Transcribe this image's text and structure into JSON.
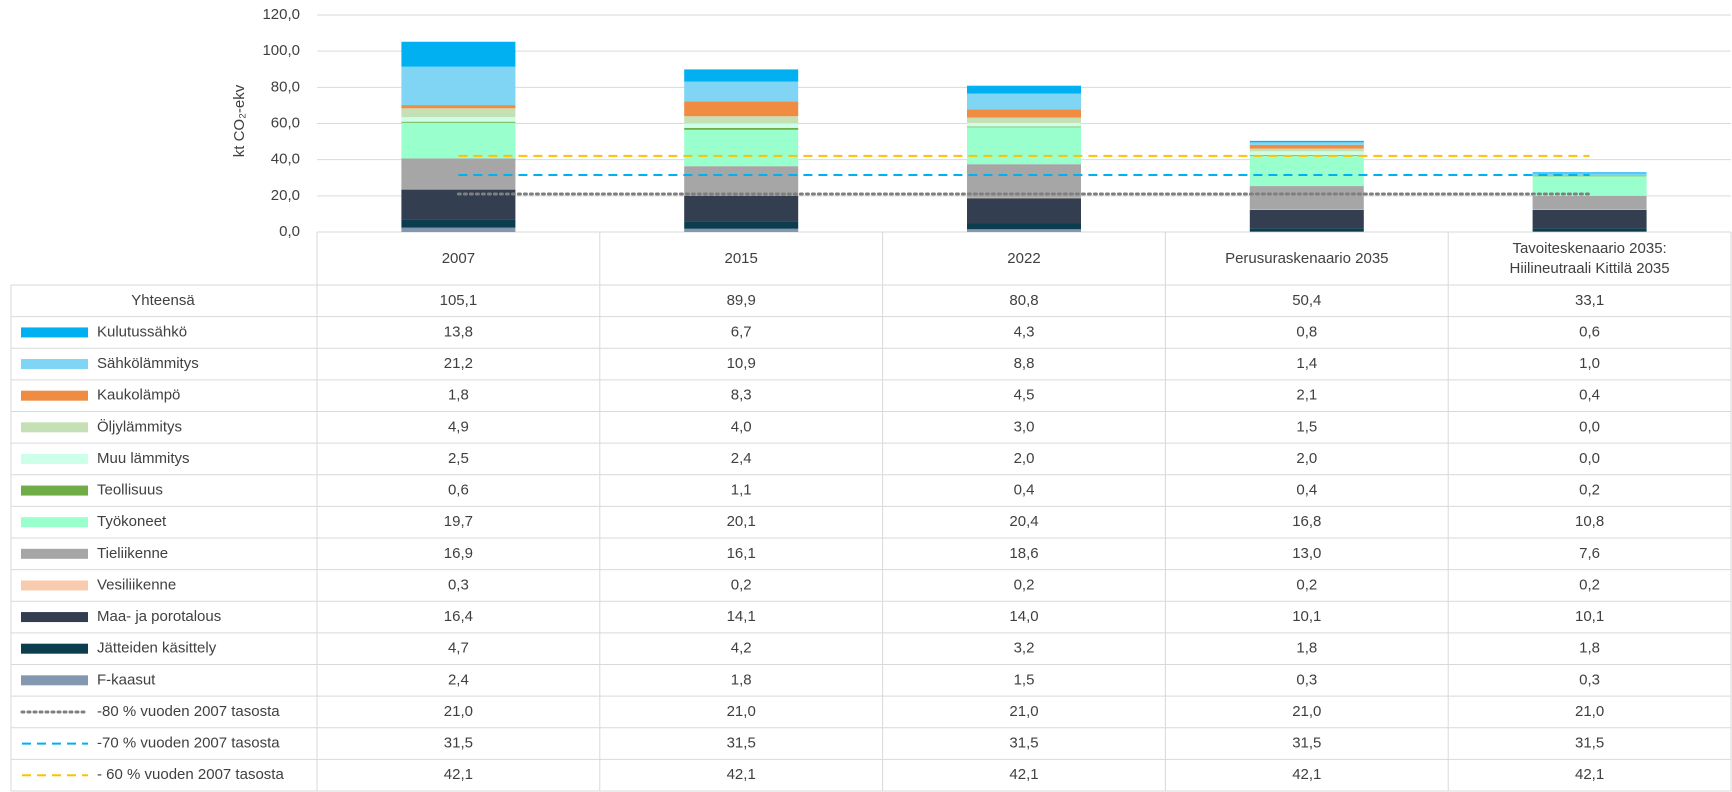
{
  "chart_data": {
    "type": "bar",
    "stacked": true,
    "y_label": "kt CO₂-ekv",
    "categories": [
      "2007",
      "2015",
      "2022",
      "Perusuraskenaario 2035",
      "Tavoiteskenaario 2035: Hiilineutraali Kittilä 2035"
    ],
    "ylim": [
      0,
      120
    ],
    "yticks": [
      {
        "value": 0,
        "label": "0,0"
      },
      {
        "value": 20,
        "label": "20,0"
      },
      {
        "value": 40,
        "label": "40,0"
      },
      {
        "value": 60,
        "label": "60,0"
      },
      {
        "value": 80,
        "label": "80,0"
      },
      {
        "value": 100,
        "label": "100,0"
      },
      {
        "value": 120,
        "label": "120,0"
      }
    ],
    "grid": true,
    "totals": {
      "name": "Yhteensä",
      "values": [
        105.1,
        89.9,
        80.8,
        50.4,
        33.1
      ],
      "value_labels": [
        "105,1",
        "89,9",
        "80,8",
        "50,4",
        "33,1"
      ]
    },
    "series": [
      {
        "name": "Kulutussähkö",
        "color": "#00b0f0",
        "values": [
          13.8,
          6.7,
          4.3,
          0.8,
          0.6
        ],
        "value_labels": [
          "13,8",
          "6,7",
          "4,3",
          "0,8",
          "0,6"
        ]
      },
      {
        "name": "Sähkölämmitys",
        "color": "#80d4f4",
        "values": [
          21.2,
          10.9,
          8.8,
          1.4,
          1.0
        ],
        "value_labels": [
          "21,2",
          "10,9",
          "8,8",
          "1,4",
          "1,0"
        ]
      },
      {
        "name": "Kaukolämpö",
        "color": "#f08c42",
        "values": [
          1.8,
          8.3,
          4.5,
          2.1,
          0.4
        ],
        "value_labels": [
          "1,8",
          "8,3",
          "4,5",
          "2,1",
          "0,4"
        ]
      },
      {
        "name": "Öljylämmitys",
        "color": "#c5e0b4",
        "values": [
          4.9,
          4.0,
          3.0,
          1.5,
          0.0
        ],
        "value_labels": [
          "4,9",
          "4,0",
          "3,0",
          "1,5",
          "0,0"
        ]
      },
      {
        "name": "Muu lämmitys",
        "color": "#ccffe8",
        "values": [
          2.5,
          2.4,
          2.0,
          2.0,
          0.0
        ],
        "value_labels": [
          "2,5",
          "2,4",
          "2,0",
          "2,0",
          "0,0"
        ]
      },
      {
        "name": "Teollisuus",
        "color": "#70ad47",
        "values": [
          0.6,
          1.1,
          0.4,
          0.4,
          0.2
        ],
        "value_labels": [
          "0,6",
          "1,1",
          "0,4",
          "0,4",
          "0,2"
        ]
      },
      {
        "name": "Työkoneet",
        "color": "#99ffcc",
        "values": [
          19.7,
          20.1,
          20.4,
          16.8,
          10.8
        ],
        "value_labels": [
          "19,7",
          "20,1",
          "20,4",
          "16,8",
          "10,8"
        ]
      },
      {
        "name": "Tieliikenne",
        "color": "#a6a6a6",
        "values": [
          16.9,
          16.1,
          18.6,
          13.0,
          7.6
        ],
        "value_labels": [
          "16,9",
          "16,1",
          "18,6",
          "13,0",
          "7,6"
        ]
      },
      {
        "name": "Vesiliikenne",
        "color": "#f8cbad",
        "values": [
          0.3,
          0.2,
          0.2,
          0.2,
          0.2
        ],
        "value_labels": [
          "0,3",
          "0,2",
          "0,2",
          "0,2",
          "0,2"
        ]
      },
      {
        "name": "Maa- ja porotalous",
        "color": "#333f50",
        "values": [
          16.4,
          14.1,
          14.0,
          10.1,
          10.1
        ],
        "value_labels": [
          "16,4",
          "14,1",
          "14,0",
          "10,1",
          "10,1"
        ]
      },
      {
        "name": "Jätteiden käsittely",
        "color": "#0b3d4f",
        "values": [
          4.7,
          4.2,
          3.2,
          1.8,
          1.8
        ],
        "value_labels": [
          "4,7",
          "4,2",
          "3,2",
          "1,8",
          "1,8"
        ]
      },
      {
        "name": "F-kaasut",
        "color": "#8497b0",
        "values": [
          2.4,
          1.8,
          1.5,
          0.3,
          0.3
        ],
        "value_labels": [
          "2,4",
          "1,8",
          "1,5",
          "0,3",
          "0,3"
        ]
      }
    ],
    "reference_lines": [
      {
        "name": "-80 % vuoden 2007 tasosta",
        "color": "#7f7f7f",
        "style": "dotted",
        "values": [
          21.0,
          21.0,
          21.0,
          21.0,
          21.0
        ],
        "value_labels": [
          "21,0",
          "21,0",
          "21,0",
          "21,0",
          "21,0"
        ]
      },
      {
        "name": "-70 % vuoden 2007 tasosta",
        "color": "#00b0f0",
        "style": "dashed",
        "values": [
          31.5,
          31.5,
          31.5,
          31.5,
          31.5
        ],
        "value_labels": [
          "31,5",
          "31,5",
          "31,5",
          "31,5",
          "31,5"
        ]
      },
      {
        "name": "- 60 % vuoden 2007 tasosta",
        "color": "#ffc000",
        "style": "dashed",
        "values": [
          42.1,
          42.1,
          42.1,
          42.1,
          42.1
        ],
        "value_labels": [
          "42,1",
          "42,1",
          "42,1",
          "42,1",
          "42,1"
        ]
      }
    ]
  }
}
